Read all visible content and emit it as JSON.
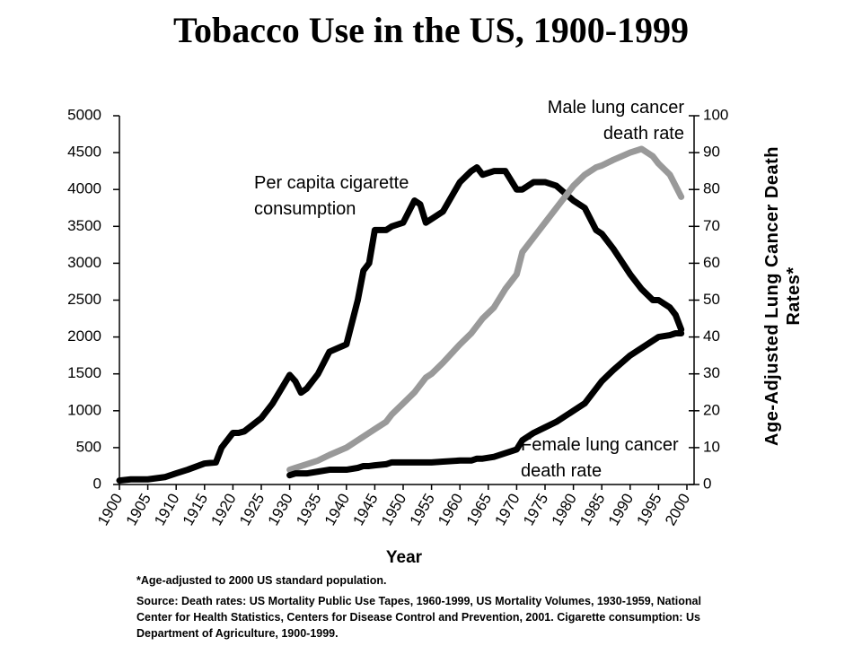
{
  "chart_data": {
    "type": "line",
    "title": "Tobacco Use in the US, 1900-1999",
    "xlabel": "Year",
    "y2label": "Age-Adjusted Lung Cancer Death Rates*",
    "footnote": "*Age-adjusted to 2000 US standard population.",
    "source": "Source: Death rates: US Mortality Public Use Tapes, 1960-1999, US Mortality Volumes, 1930-1959, National Center for Health Statistics, Centers for Disease Control and Prevention, 2001. Cigarette consumption: Us Department of Agriculture, 1900-1999.",
    "x": [
      1900,
      1902,
      1905,
      1908,
      1910,
      1912,
      1915,
      1917,
      1918,
      1920,
      1921,
      1922,
      1925,
      1927,
      1930,
      1931,
      1932,
      1933,
      1935,
      1937,
      1940,
      1942,
      1943,
      1944,
      1945,
      1947,
      1948,
      1950,
      1952,
      1953,
      1954,
      1955,
      1957,
      1960,
      1962,
      1963,
      1964,
      1966,
      1968,
      1970,
      1971,
      1973,
      1975,
      1977,
      1980,
      1982,
      1984,
      1985,
      1987,
      1990,
      1992,
      1994,
      1995,
      1997,
      1998,
      1999
    ],
    "series": [
      {
        "name": "Per capita cigarette consumption",
        "color": "#000000",
        "values": [
          54,
          70,
          70,
          100,
          151,
          200,
          285,
          300,
          500,
          700,
          700,
          720,
          900,
          1100,
          1485,
          1400,
          1245,
          1300,
          1500,
          1800,
          1900,
          2500,
          2900,
          3000,
          3450,
          3450,
          3500,
          3550,
          3850,
          3800,
          3550,
          3600,
          3700,
          4100,
          4250,
          4300,
          4200,
          4250,
          4250,
          4000,
          4000,
          4100,
          4100,
          4050,
          3850,
          3750,
          3450,
          3400,
          3200,
          2850,
          2650,
          2500,
          2500,
          2400,
          2300,
          2100
        ]
      },
      {
        "name": "Male lung cancer death rate",
        "color": "#999999",
        "axis": "y2",
        "values": [
          null,
          null,
          null,
          null,
          null,
          null,
          null,
          null,
          null,
          null,
          null,
          null,
          null,
          null,
          4,
          4.5,
          5,
          5.5,
          6.5,
          8,
          10,
          12,
          13,
          14,
          15,
          17,
          19,
          22,
          25,
          27,
          29,
          30,
          33,
          38,
          41,
          43,
          45,
          48,
          53,
          57,
          63,
          67,
          71,
          75,
          81,
          84,
          86,
          86.5,
          88,
          90,
          91,
          89,
          87,
          84,
          81,
          78
        ]
      },
      {
        "name": "Female lung cancer death rate",
        "color": "#000000",
        "axis": "y2",
        "values": [
          null,
          null,
          null,
          null,
          null,
          null,
          null,
          null,
          null,
          null,
          null,
          null,
          null,
          null,
          2.5,
          3,
          3,
          3,
          3.5,
          4,
          4,
          4.5,
          5,
          5,
          5.2,
          5.5,
          6,
          6,
          6,
          6,
          6,
          6,
          6.2,
          6.5,
          6.5,
          7,
          7,
          7.5,
          8.5,
          9.5,
          12,
          14,
          15.5,
          17,
          20,
          22,
          26,
          28,
          31,
          35,
          37,
          39,
          40,
          40.5,
          41,
          41
        ]
      }
    ],
    "xlim": [
      1900,
      2000
    ],
    "xticks": [
      1900,
      1905,
      1910,
      1915,
      1920,
      1925,
      1930,
      1935,
      1940,
      1945,
      1950,
      1955,
      1960,
      1965,
      1970,
      1975,
      1980,
      1985,
      1990,
      1995,
      2000
    ],
    "ylim": [
      0,
      5000
    ],
    "yticks": [
      0,
      500,
      1000,
      1500,
      2000,
      2500,
      3000,
      3500,
      4000,
      4500,
      5000
    ],
    "y2lim": [
      0,
      100
    ],
    "y2ticks": [
      0,
      10,
      20,
      30,
      40,
      50,
      60,
      70,
      80,
      90,
      100
    ]
  }
}
